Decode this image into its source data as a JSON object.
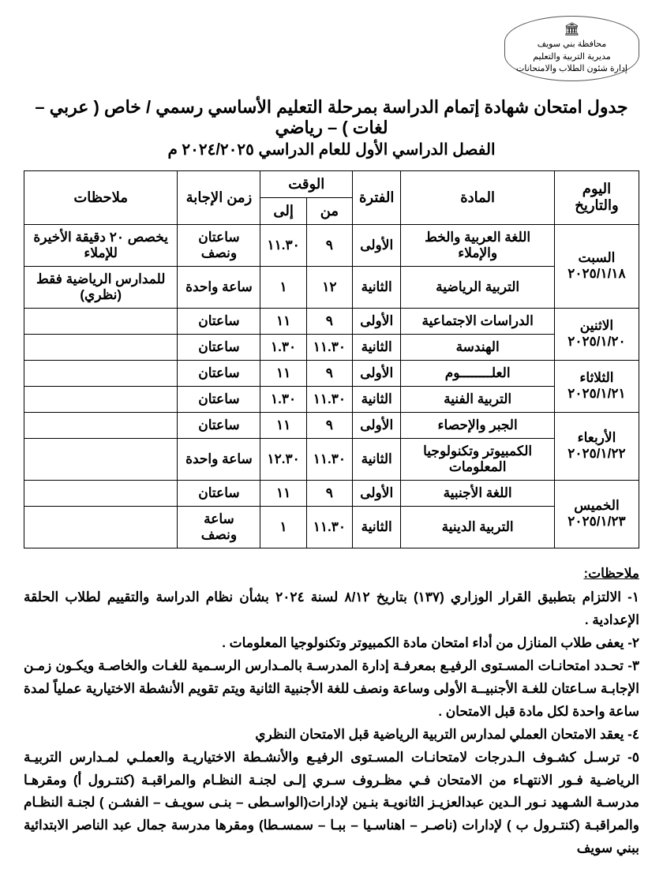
{
  "ministry": {
    "line1": "محافظة بني سويف",
    "line2": "مديرية التربية والتعليم",
    "line3": "إدارة شئون الطلاب والامتحانات"
  },
  "title": "جدول امتحان شهادة إتمام الدراسة بمرحلة التعليم الأساسي رسمي / خاص ( عربي – لغات ) – رياضي",
  "subtitle": "الفصل الدراسي الأول للعام الدراسي ٢٠٢٤/٢٠٢٥ م",
  "headers": {
    "day": "اليوم والتاريخ",
    "subject": "المادة",
    "period": "الفترة",
    "time": "الوقت",
    "from": "من",
    "to": "إلى",
    "duration": "زمن الإجابة",
    "remarks": "ملاحظات"
  },
  "rows": [
    {
      "day": "السبت",
      "date": "٢٠٢٥/١/١٨",
      "subject": "اللغة العربية والخط والإملاء",
      "period": "الأولى",
      "from": "٩",
      "to": "١١.٣٠",
      "duration": "ساعتان ونصف",
      "remarks": "يخصص ٢٠ دقيقة الأخيرة للإملاء",
      "thick": true
    },
    {
      "day": "",
      "date": "",
      "subject": "التربية الرياضية",
      "period": "الثانية",
      "from": "١٢",
      "to": "١",
      "duration": "ساعة واحدة",
      "remarks": "للمدارس الرياضية فقط (نظري)",
      "thick": false
    },
    {
      "day": "الاثنين",
      "date": "٢٠٢٥/١/٢٠",
      "subject": "الدراسات الاجتماعية",
      "period": "الأولى",
      "from": "٩",
      "to": "١١",
      "duration": "ساعتان",
      "remarks": "",
      "thick": true
    },
    {
      "day": "",
      "date": "",
      "subject": "الهندسة",
      "period": "الثانية",
      "from": "١١.٣٠",
      "to": "١.٣٠",
      "duration": "ساعتان",
      "remarks": "",
      "thick": false
    },
    {
      "day": "الثلاثاء",
      "date": "٢٠٢٥/١/٢١",
      "subject": "العلــــــــوم",
      "period": "الأولى",
      "from": "٩",
      "to": "١١",
      "duration": "ساعتان",
      "remarks": "",
      "thick": true
    },
    {
      "day": "",
      "date": "",
      "subject": "التربية الفنية",
      "period": "الثانية",
      "from": "١١.٣٠",
      "to": "١.٣٠",
      "duration": "ساعتان",
      "remarks": "",
      "thick": false
    },
    {
      "day": "الأربعاء",
      "date": "٢٠٢٥/١/٢٢",
      "subject": "الجبر والإحصاء",
      "period": "الأولى",
      "from": "٩",
      "to": "١١",
      "duration": "ساعتان",
      "remarks": "",
      "thick": true
    },
    {
      "day": "",
      "date": "",
      "subject": "الكمبيوتر وتكنولوجيا المعلومات",
      "period": "الثانية",
      "from": "١١.٣٠",
      "to": "١٢.٣٠",
      "duration": "ساعة واحدة",
      "remarks": "",
      "thick": false
    },
    {
      "day": "الخميس",
      "date": "٢٠٢٥/١/٢٣",
      "subject": "اللغة الأجنبية",
      "period": "الأولى",
      "from": "٩",
      "to": "١١",
      "duration": "ساعتان",
      "remarks": "",
      "thick": true
    },
    {
      "day": "",
      "date": "",
      "subject": "التربية الدينية",
      "period": "الثانية",
      "from": "١١.٣٠",
      "to": "١",
      "duration": "ساعة ونصف",
      "remarks": "",
      "thick": false
    }
  ],
  "notes_title": "ملاحظات:",
  "notes": [
    "١- الالتزام بتطبيق القرار الوزاري (١٣٧) بتاريخ ٨/١٢ لسنة ٢٠٢٤ بشأن نظام الدراسة والتقييم لطلاب الحلقة الإعدادية .",
    "٢- يعفى طلاب المنازل من أداء امتحان مادة الكمبيوتر وتكنولوجيا المعلومات .",
    "٣- تحـدد امتحانـات المسـتوى الرفيـع بمعرفـة إدارة المدرسـة بالمـدارس الرسـمية للغـات والخاصـة ويكـون زمـن الإجابـة سـاعتان للغـة الأجنبيــة الأولى وساعة ونصف للغة الأجنبية الثانية ويتم تقويم الأنشطة الاختيارية عملياً لمدة ساعة واحدة لكل مادة قبل الامتحان .",
    "٤- يعقد الامتحان العملي لمدارس التربية الرياضية قبل الامتحان النظري",
    "٥- ترسـل كشـوف الـدرجات لامتحانـات المسـتوى الرفيـع والأنشـطة الاختياريـة والعملـي لمـدارس التربيـة الرياضـية فـور الانتهـاء من الامتحان فـي مظـروف سـري إلـى لجنـة النظـام والمراقبـة (كنتـرول أ) ومقرهـا مدرسـة الشـهيد نـور الـدين عبدالعزيـز الثانويـة بنـين لإدارات(الواسـطى – بنـى سويـف – الفشـن ) لجنـة النظـام والمراقبـة (كنتـرول ب ) لإدارات (ناصـر – اهناسـيا – ببـا – سمسـطا) ومقرها مدرسة جمال عبد الناصر الابتدائية ببني سويف"
  ]
}
